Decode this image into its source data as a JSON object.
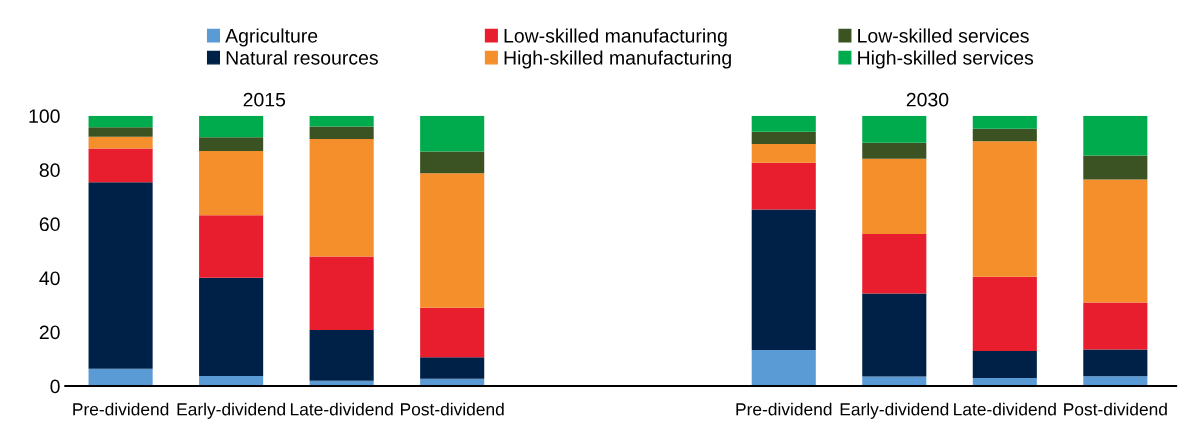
{
  "chart_data": {
    "type": "bar",
    "stacked": true,
    "categories": [
      "Pre-dividend",
      "Early-dividend",
      "Late-dividend",
      "Post-dividend",
      null,
      null,
      "Pre-dividend",
      "Early-dividend",
      "Late-dividend",
      "Post-dividend"
    ],
    "series": [
      {
        "name": "Agriculture",
        "color": "#5b9bd5",
        "values": [
          6.4,
          3.7,
          2.0,
          2.7,
          null,
          null,
          13.3,
          3.5,
          3.0,
          3.6
        ]
      },
      {
        "name": "Natural resources",
        "color": "#002147",
        "values": [
          69.0,
          36.4,
          18.7,
          8.0,
          null,
          null,
          52.0,
          30.7,
          10.0,
          9.9
        ]
      },
      {
        "name": "Low-skilled manufacturing",
        "color": "#e81e2e",
        "values": [
          12.5,
          23.1,
          27.2,
          18.3,
          null,
          null,
          17.3,
          22.1,
          27.4,
          17.4
        ]
      },
      {
        "name": "High-skilled manufacturing",
        "color": "#f58f2c",
        "values": [
          4.3,
          23.8,
          43.5,
          49.7,
          null,
          null,
          7.0,
          27.8,
          50.2,
          45.5
        ]
      },
      {
        "name": "Low-skilled services",
        "color": "#3b5323",
        "values": [
          3.6,
          5.1,
          4.6,
          8.1,
          null,
          null,
          4.5,
          5.9,
          4.6,
          8.9
        ]
      },
      {
        "name": "High-skilled services",
        "color": "#00ab4e",
        "values": [
          4.2,
          7.9,
          4.0,
          13.2,
          null,
          null,
          5.9,
          10.0,
          4.8,
          14.7
        ]
      }
    ],
    "annotations": [
      "2015",
      "2030"
    ],
    "ylim": [
      0,
      100
    ],
    "yticks": [
      0,
      20,
      40,
      60,
      80,
      100
    ],
    "grid": false,
    "legend": "top"
  }
}
